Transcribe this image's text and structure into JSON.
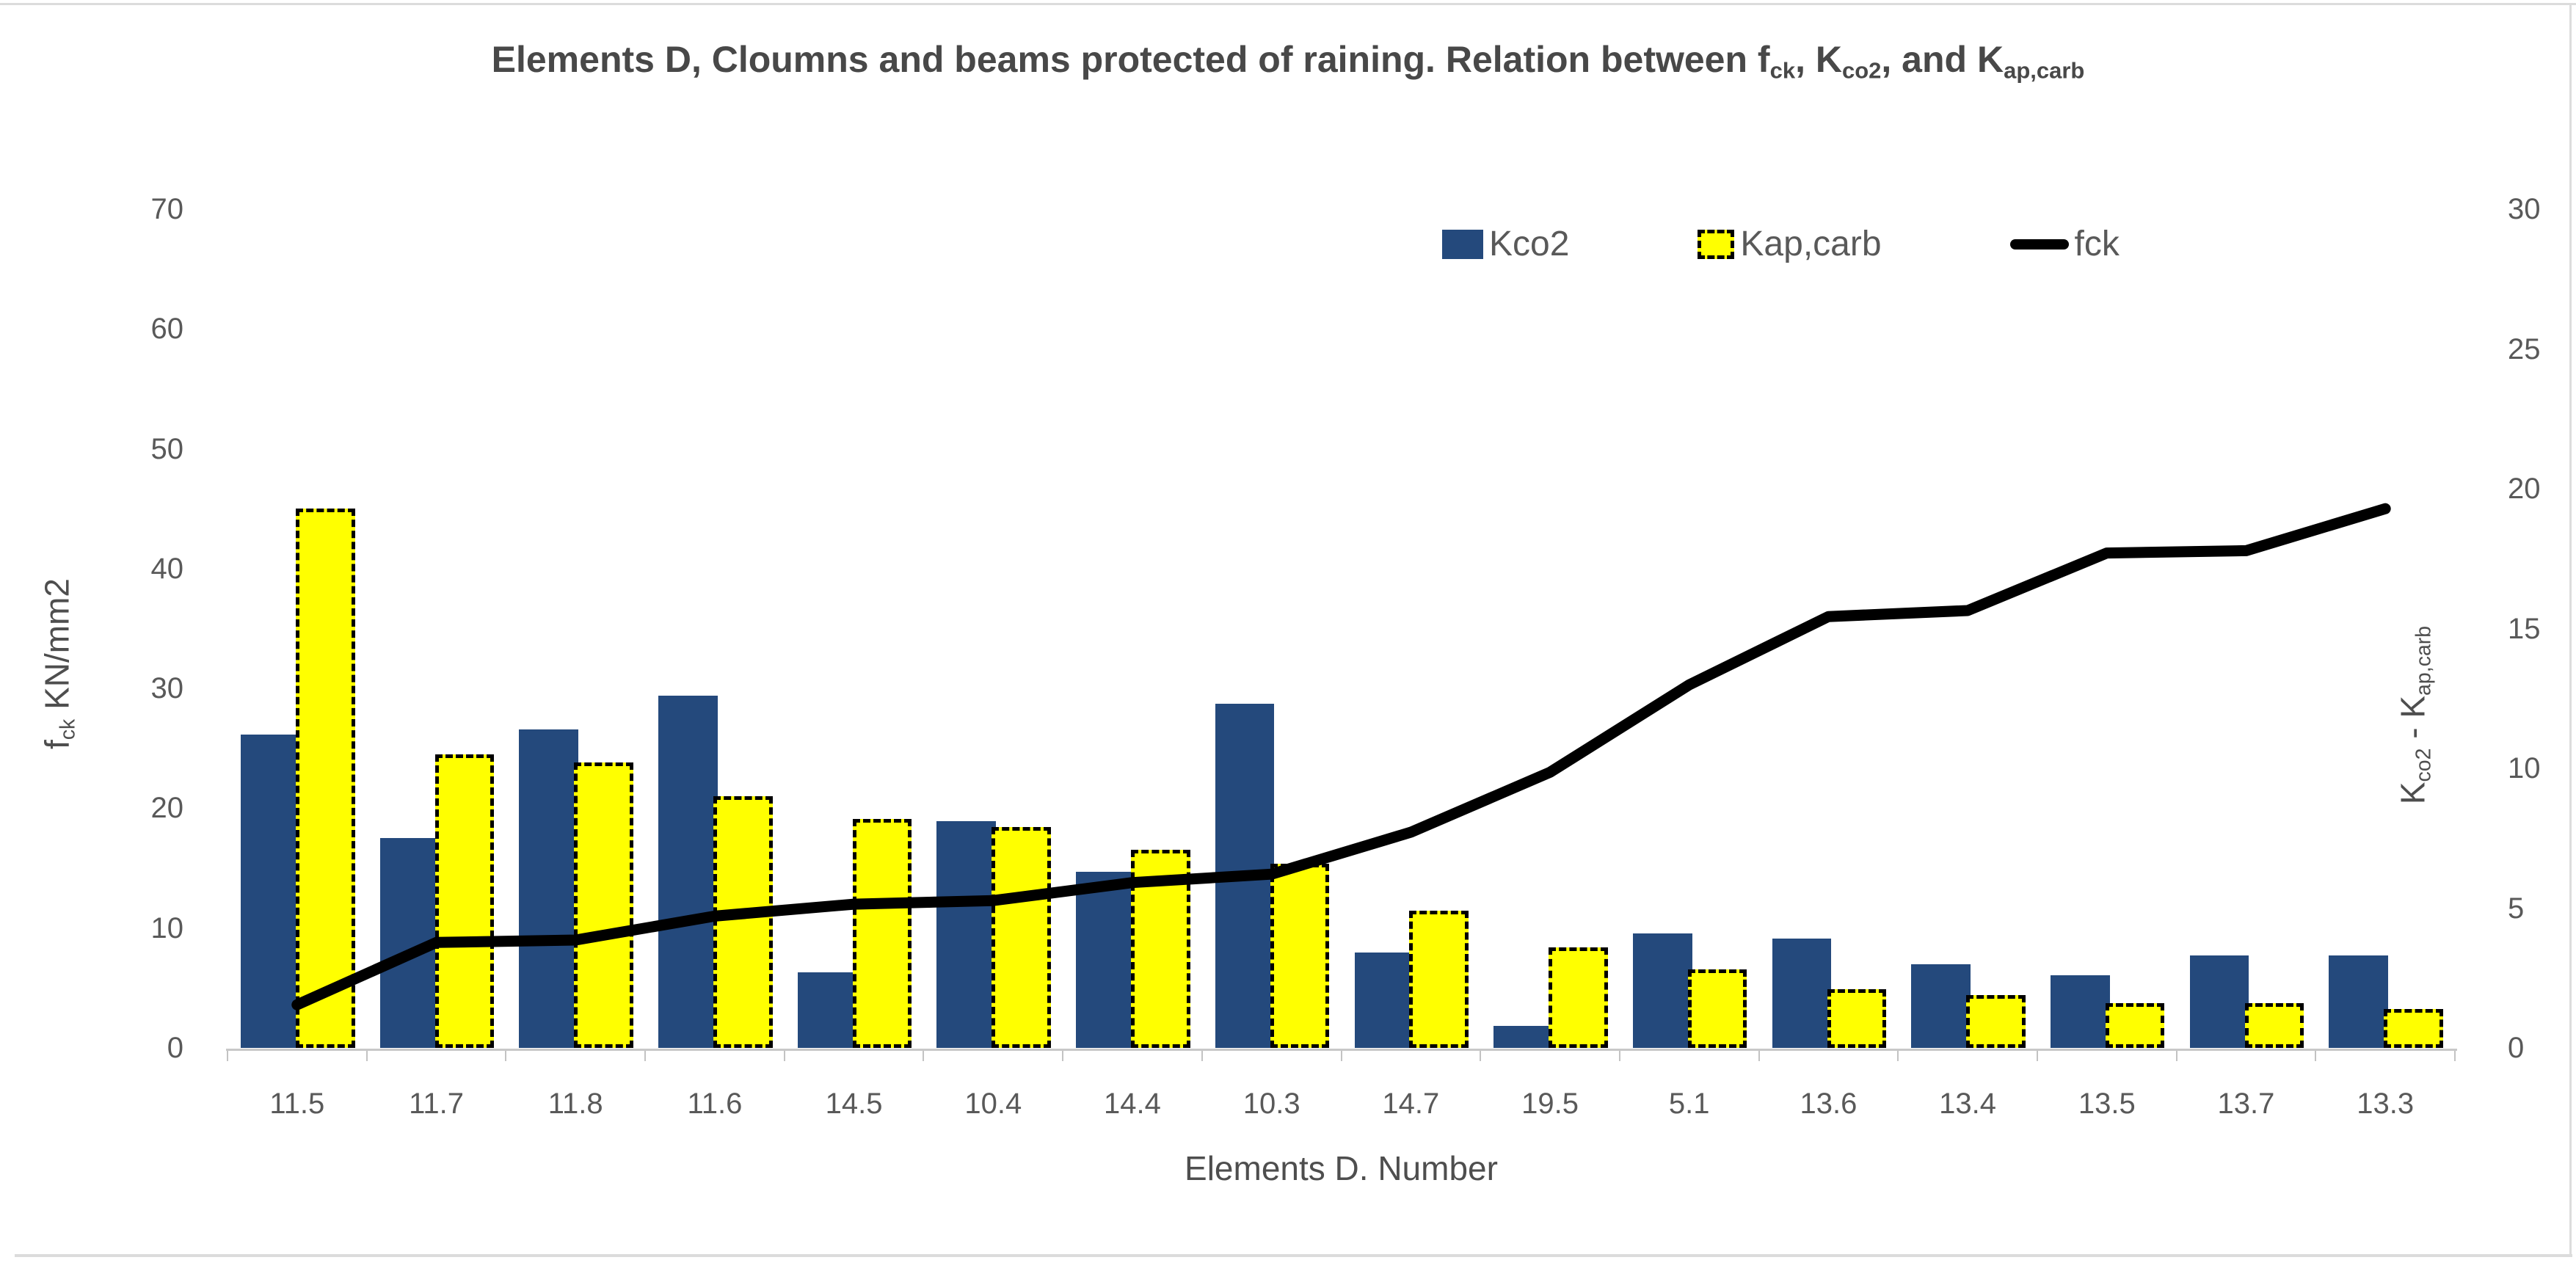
{
  "chart_data": {
    "type": "bar",
    "subtype": "combo-bar-line-dual-axis",
    "title_parts": [
      {
        "text": "Elements D, Cloumns and beams protected of raining. Relation between f"
      },
      {
        "text": "ck",
        "sub": true
      },
      {
        "text": ", K"
      },
      {
        "text": "co2",
        "sub": true
      },
      {
        "text": ", and K"
      },
      {
        "text": "ap,carb",
        "sub": true
      }
    ],
    "categories": [
      "11.5",
      "11.7",
      "11.8",
      "11.6",
      "14.5",
      "10.4",
      "14.4",
      "10.3",
      "14.7",
      "19.5",
      "5.1",
      "13.6",
      "13.4",
      "13.5",
      "13.7",
      "13.3"
    ],
    "series": [
      {
        "name": "Kco2",
        "type": "bar",
        "axis": "right",
        "values": [
          11.2,
          7.5,
          11.4,
          12.6,
          2.7,
          8.1,
          6.3,
          12.3,
          3.4,
          0.8,
          4.1,
          3.9,
          3.0,
          2.6,
          3.3,
          3.3
        ]
      },
      {
        "name": "Kap,carb",
        "type": "bar",
        "axis": "right",
        "values": [
          19.3,
          10.5,
          10.2,
          9.0,
          8.2,
          7.9,
          7.1,
          6.6,
          4.9,
          3.6,
          2.8,
          2.1,
          1.9,
          1.6,
          1.6,
          1.4
        ]
      },
      {
        "name": "fck",
        "type": "line",
        "axis": "left",
        "values": [
          3.6,
          8.8,
          9.0,
          11.0,
          12.0,
          12.3,
          13.8,
          14.5,
          18.0,
          23.0,
          30.3,
          36.0,
          36.5,
          41.3,
          41.5,
          45.0
        ]
      }
    ],
    "left_axis": {
      "title_parts": [
        {
          "text": "f"
        },
        {
          "text": "ck",
          "sub": true
        },
        {
          "text": " KN/mm2"
        }
      ],
      "min": 0,
      "max": 70,
      "step": 10,
      "tick_labels": [
        "0",
        "10",
        "20",
        "30",
        "40",
        "50",
        "60",
        "70"
      ]
    },
    "right_axis": {
      "title_parts": [
        {
          "text": "K"
        },
        {
          "text": "co2",
          "sub": true
        },
        {
          "text": " - K"
        },
        {
          "text": "ap,carb",
          "sub": true
        }
      ],
      "min": 0,
      "max": 30,
      "step": 5,
      "tick_labels": [
        "0",
        "5",
        "10",
        "15",
        "20",
        "25",
        "30"
      ]
    },
    "x_axis": {
      "title": "Elements D. Number"
    },
    "legend": [
      {
        "label": "Kco2",
        "swatch": "blue-square"
      },
      {
        "label": "Kap,carb",
        "swatch": "yellow-dashed-square"
      },
      {
        "label": "fck",
        "swatch": "black-line"
      }
    ],
    "legend_position": "inside-top-right",
    "grid": false,
    "colors": {
      "bar_blue": "#24497c",
      "bar_yellow": "#ffff00",
      "bar_yellow_border": "#000000",
      "line_black": "#000000",
      "tick_text": "#595959",
      "title_text": "#484848",
      "axis_line": "#c8c8c8",
      "frame_line": "#dcdcdc"
    }
  }
}
